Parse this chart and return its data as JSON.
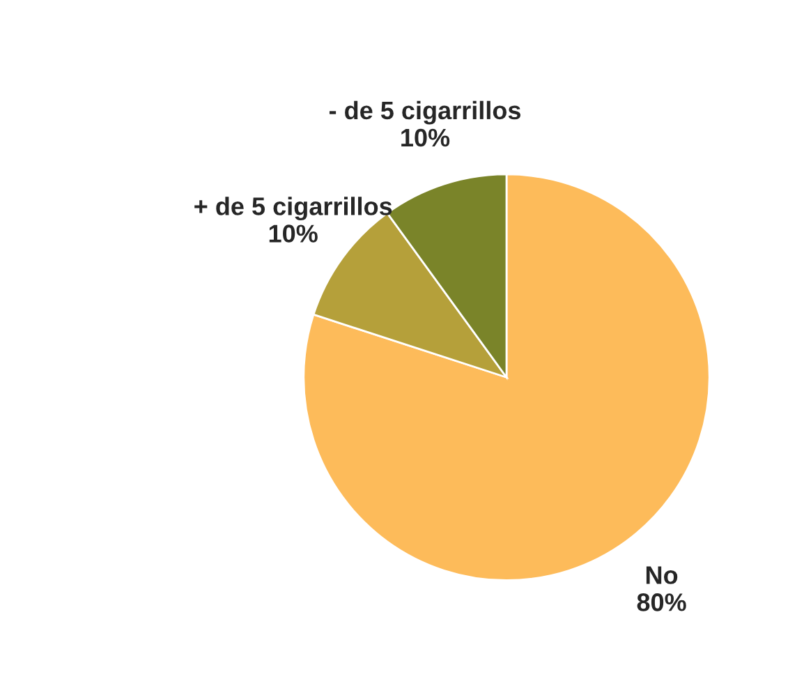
{
  "chart_data": {
    "type": "pie",
    "categories": [
      "No",
      "+ de 5 cigarrillos",
      "- de 5 cigarrillos"
    ],
    "values": [
      80,
      10,
      10
    ],
    "value_labels": [
      "80%",
      "10%",
      "10%"
    ],
    "colors": [
      "#fdbb5a",
      "#b5a03a",
      "#7a8429"
    ],
    "legend": false
  }
}
